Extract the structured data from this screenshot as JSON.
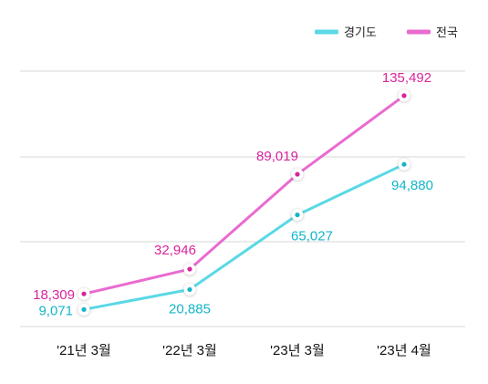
{
  "chart_data": {
    "type": "line",
    "title": "",
    "xlabel": "",
    "ylabel": "",
    "categories": [
      "'21년 3월",
      "'22년 3월",
      "'23년 3월",
      "'23년 4월"
    ],
    "series": [
      {
        "name": "경기도",
        "color": "#5ad8e6",
        "label_color": "#13b5c8",
        "values": [
          9071,
          20885,
          65027,
          94880
        ],
        "labels": [
          "9,071",
          "20,885",
          "65,027",
          "94,880"
        ]
      },
      {
        "name": "전국",
        "color": "#e96bd0",
        "label_color": "#d9239c",
        "values": [
          18309,
          32946,
          89019,
          135492
        ],
        "labels": [
          "18,309",
          "32,946",
          "89,019",
          "135,492"
        ]
      }
    ],
    "ylim": [
      -1000,
      150000
    ],
    "grid": true,
    "legend": "top-right"
  }
}
